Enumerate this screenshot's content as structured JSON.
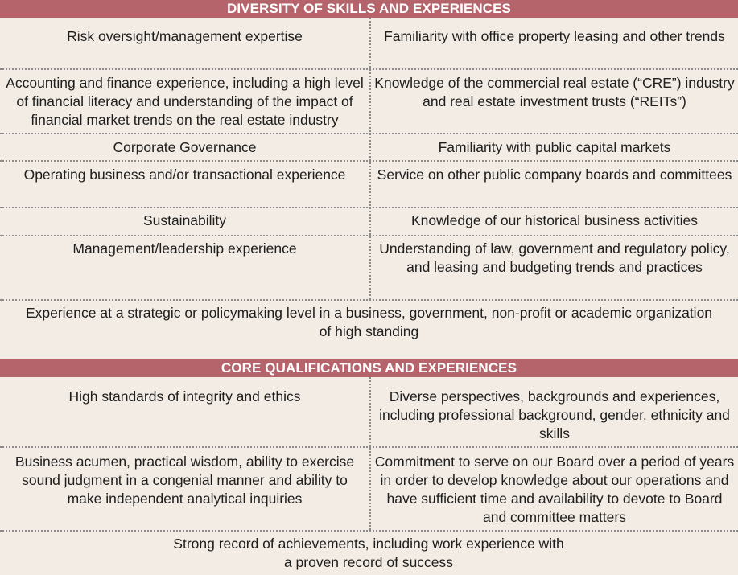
{
  "diversity": {
    "title": "DIVERSITY OF SKILLS AND EXPERIENCES",
    "rows": [
      {
        "left": "Risk oversight/management expertise",
        "right": "Familiarity with office property leasing and other trends"
      },
      {
        "left": "Accounting and finance experience, including a high level of financial literacy and understanding of the impact of financial market trends on the real estate industry",
        "right": "Knowledge of the commercial real estate (“CRE”) industry and real estate investment trusts (“REITs”)"
      },
      {
        "left": "Corporate Governance",
        "right": "Familiarity with public capital markets"
      },
      {
        "left": "Operating business and/or transactional experience",
        "right": "Service on other public company boards and committees"
      },
      {
        "left": "Sustainability",
        "right": "Knowledge of our historical business activities"
      },
      {
        "left": "Management/leadership experience",
        "right": "Understanding of law, government and regulatory policy, and leasing and budgeting trends and practices"
      }
    ],
    "full_row": "Experience at a strategic or policymaking level in a business, government, non-profit or academic organization of high standing"
  },
  "core": {
    "title": "CORE QUALIFICATIONS AND EXPERIENCES",
    "rows": [
      {
        "left": "High standards of integrity and ethics",
        "right": "Diverse perspectives, backgrounds and experiences, including professional background, gender, ethnicity and skills"
      },
      {
        "left": "Business acumen, practical wisdom, ability to exercise sound judgment in a congenial manner and ability to make independent analytical inquiries",
        "right": "Commitment to serve on our Board over a period of years in order to develop knowledge about our operations and have sufficient time and availability to devote to Board and committee matters"
      }
    ],
    "full_row": "Strong record of achievements, including work experience with a proven record of success"
  },
  "colors": {
    "header_bg": "#b5646c",
    "page_bg": "#f3ece4"
  }
}
